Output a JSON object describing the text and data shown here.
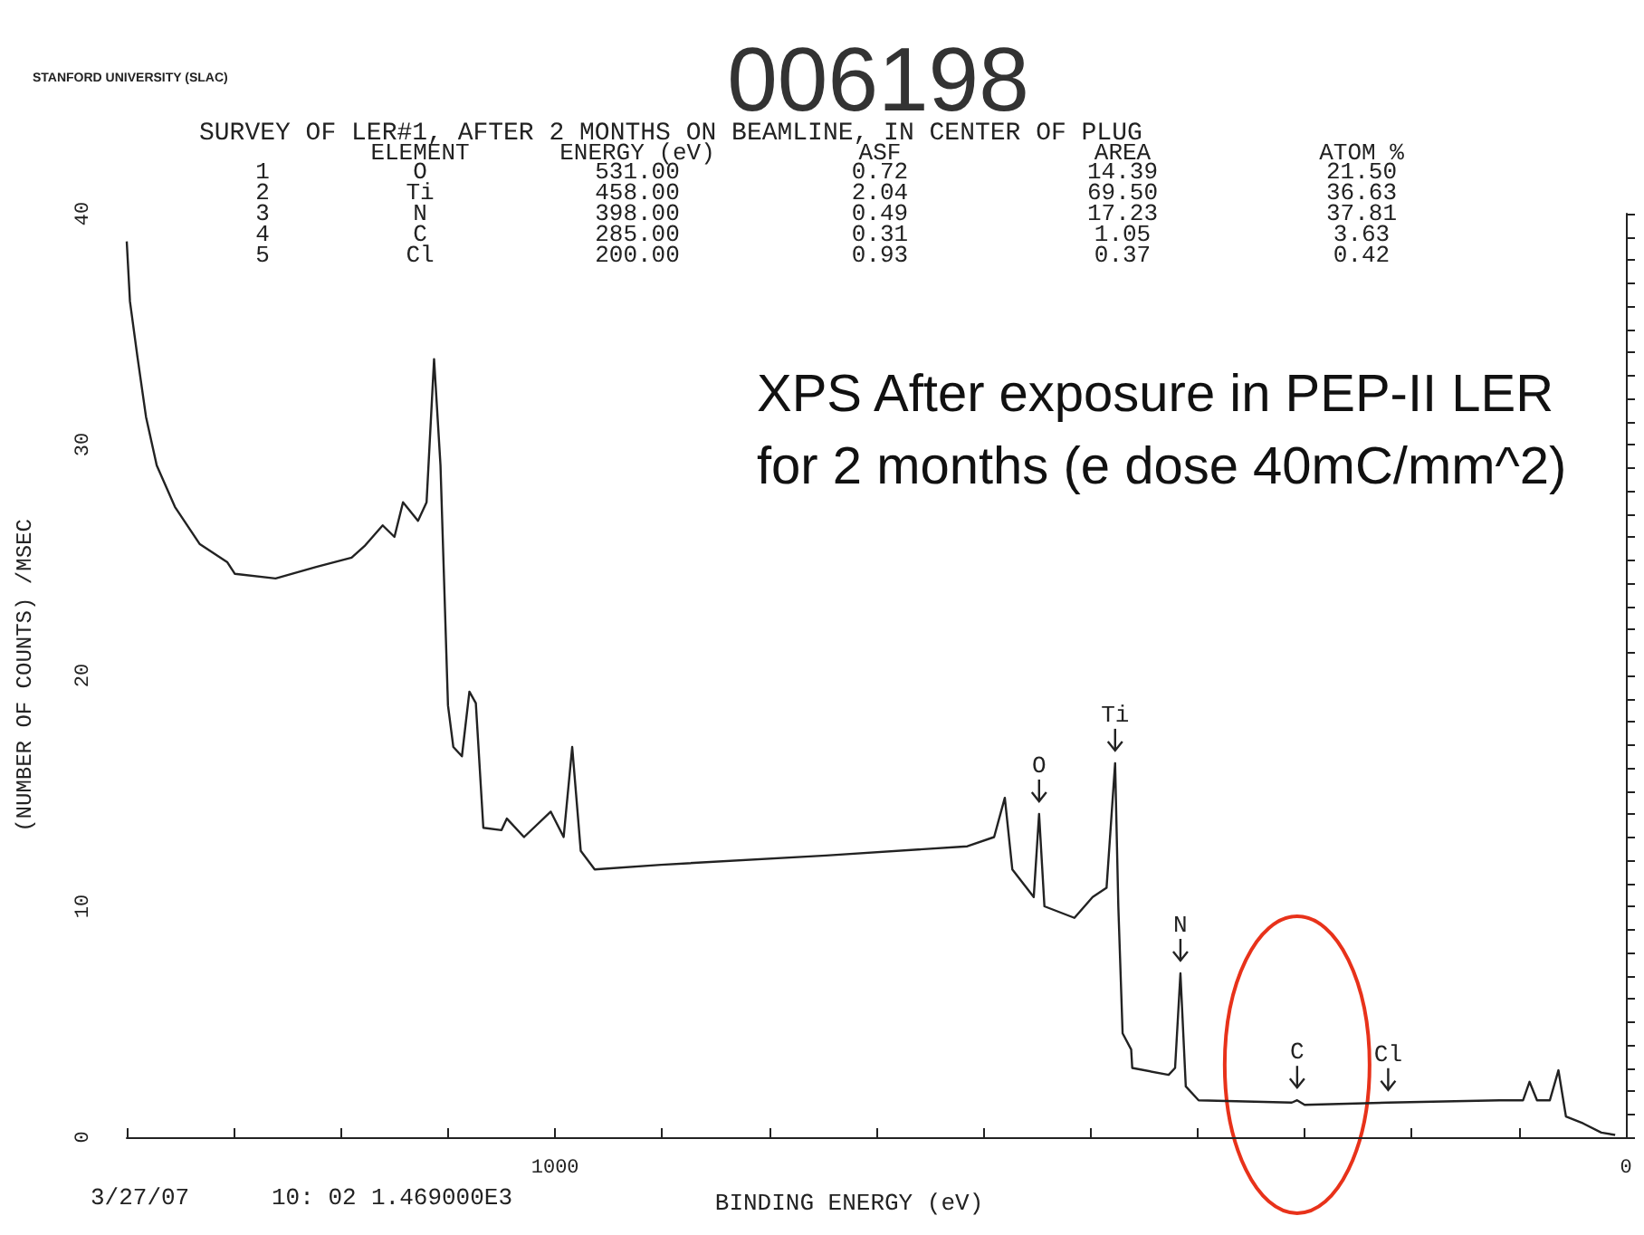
{
  "chart_data": {
    "type": "line",
    "title": "006198",
    "subtitle": "SURVEY OF LER#1, AFTER 2 MONTHS ON BEAMLINE, IN CENTER OF PLUG",
    "xlabel": "BINDING ENERGY (eV)",
    "ylabel": "(NUMBER OF COUNTS) /MSEC",
    "series": [
      {
        "color": "#222222",
        "x": [
          1400,
          1397,
          1390,
          1382,
          1372,
          1355,
          1332,
          1306,
          1299,
          1261,
          1223,
          1190,
          1178,
          1161,
          1150,
          1142,
          1128,
          1120,
          1113,
          1107,
          1100,
          1095,
          1087,
          1080,
          1074,
          1067,
          1050,
          1045,
          1029,
          1004,
          992,
          984,
          976,
          963,
          901,
          747,
          615,
          590,
          580,
          573,
          553,
          548,
          543,
          515,
          498,
          485,
          477,
          474,
          470,
          462,
          461,
          427,
          421,
          416,
          411,
          399,
          312,
          307,
          300,
          222,
          118,
          96,
          90,
          83,
          71,
          63,
          56,
          40,
          23,
          10
        ],
        "values": [
          38.8,
          36.2,
          33.8,
          31.2,
          29.1,
          27.3,
          25.7,
          24.9,
          24.4,
          24.2,
          24.7,
          25.1,
          25.6,
          26.5,
          26.0,
          27.5,
          26.7,
          27.5,
          33.7,
          29.1,
          18.7,
          16.9,
          16.5,
          19.3,
          18.8,
          13.4,
          13.3,
          13.8,
          13.0,
          14.1,
          13.0,
          16.9,
          12.4,
          11.6,
          11.8,
          12.2,
          12.6,
          13.0,
          14.7,
          11.6,
          10.4,
          14.0,
          10.0,
          9.5,
          10.4,
          10.8,
          16.2,
          10.0,
          4.5,
          3.8,
          3.0,
          2.7,
          3.0,
          7.1,
          2.2,
          1.6,
          1.5,
          1.6,
          1.4,
          1.5,
          1.6,
          1.6,
          2.4,
          1.6,
          1.6,
          2.9,
          0.9,
          0.6,
          0.2,
          0.1
        ]
      }
    ],
    "xlim": [
      1400,
      0
    ],
    "xticks": [
      {
        "value": 1400,
        "label": null
      },
      {
        "value": 1300,
        "label": null
      },
      {
        "value": 1200,
        "label": null
      },
      {
        "value": 1100,
        "label": null
      },
      1000,
      {
        "value": 900,
        "label": null
      },
      {
        "value": 800,
        "label": null
      },
      {
        "value": 700,
        "label": null
      },
      {
        "value": 600,
        "label": null
      },
      {
        "value": 500,
        "label": null
      },
      {
        "value": 400,
        "label": null
      },
      {
        "value": 300,
        "label": null
      },
      {
        "value": 200,
        "label": null
      },
      {
        "value": 100,
        "label": null
      },
      0
    ],
    "ylim": [
      0,
      40
    ],
    "yticks": [
      0,
      {
        "value": 1,
        "label": null
      },
      {
        "value": 2,
        "label": null
      },
      {
        "value": 3,
        "label": null
      },
      {
        "value": 4,
        "label": null
      },
      {
        "value": 5,
        "label": null
      },
      {
        "value": 6,
        "label": null
      },
      {
        "value": 7,
        "label": null
      },
      {
        "value": 8,
        "label": null
      },
      {
        "value": 9,
        "label": null
      },
      10,
      {
        "value": 11,
        "label": null
      },
      {
        "value": 12,
        "label": null
      },
      {
        "value": 13,
        "label": null
      },
      {
        "value": 14,
        "label": null
      },
      {
        "value": 15,
        "label": null
      },
      {
        "value": 16,
        "label": null
      },
      {
        "value": 17,
        "label": null
      },
      {
        "value": 18,
        "label": null
      },
      {
        "value": 19,
        "label": null
      },
      20,
      {
        "value": 21,
        "label": null
      },
      {
        "value": 22,
        "label": null
      },
      {
        "value": 23,
        "label": null
      },
      {
        "value": 24,
        "label": null
      },
      {
        "value": 25,
        "label": null
      },
      {
        "value": 26,
        "label": null
      },
      {
        "value": 27,
        "label": null
      },
      {
        "value": 28,
        "label": null
      },
      {
        "value": 29,
        "label": null
      },
      30,
      {
        "value": 31,
        "label": null
      },
      {
        "value": 32,
        "label": null
      },
      {
        "value": 33,
        "label": null
      },
      {
        "value": 34,
        "label": null
      },
      {
        "value": 35,
        "label": null
      },
      {
        "value": 36,
        "label": null
      },
      {
        "value": 37,
        "label": null
      },
      {
        "value": 38,
        "label": null
      },
      {
        "value": 39,
        "label": null
      },
      40
    ],
    "grid": false,
    "marker": "none",
    "line_style": "solid",
    "annotations": [
      "STANFORD UNIVERSITY (SLAC)",
      "ELEMENT",
      "ENERGY (eV)",
      "ASF",
      "AREA",
      "ATOM %",
      "1",
      "O",
      "531.00",
      "0.72",
      "14.39",
      "21.50",
      "2",
      "Ti",
      "458.00",
      "2.04",
      "69.50",
      "36.63",
      "3",
      "N",
      "398.00",
      "0.49",
      "17.23",
      "37.81",
      "4",
      "C",
      "285.00",
      "0.31",
      "1.05",
      "3.63",
      "5",
      "Cl",
      "200.00",
      "0.93",
      "0.37",
      "0.42",
      "3/27/07",
      "10: 02",
      "1.469000E3",
      "XPS After exposure in PEP-II LER for 2 months (e dose 40mC/mm^2)",
      {
        "text": "O",
        "x": 548,
        "y": 14.0
      },
      {
        "text": "Ti",
        "x": 477,
        "y": 16.2
      },
      {
        "text": "N",
        "x": 416,
        "y": 7.1
      },
      {
        "text": "C",
        "x": 307,
        "y": 1.6
      },
      {
        "text": "Cl",
        "x": 222,
        "y": 1.5
      }
    ]
  }
}
